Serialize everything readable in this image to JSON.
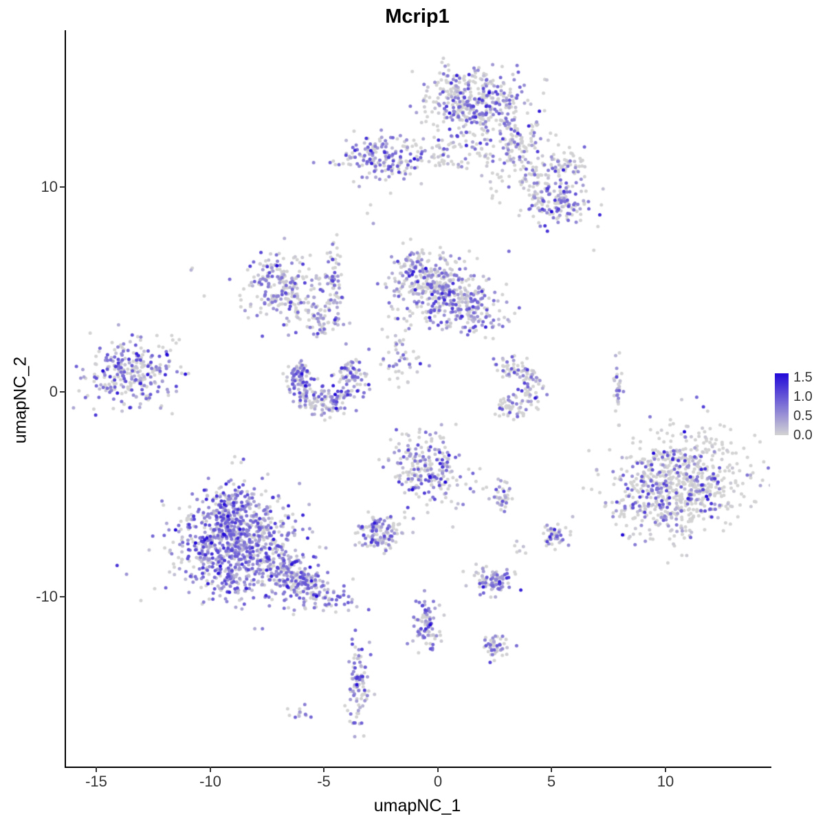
{
  "title": "Mcrip1",
  "axes": {
    "x": {
      "label": "umapNC_1",
      "tick_labels": [
        "-15",
        "-10",
        "-5",
        "0",
        "5",
        "10"
      ],
      "tick_values": [
        -15,
        -10,
        -5,
        0,
        5,
        10
      ]
    },
    "y": {
      "label": "umapNC_2",
      "tick_labels": [
        "10",
        "0",
        "-10"
      ],
      "tick_values": [
        10,
        0,
        -10
      ]
    }
  },
  "legend": {
    "labels": [
      "1.5",
      "1.0",
      "0.5",
      "0.0"
    ],
    "min": 0.0,
    "max": 1.5
  },
  "chart_data": {
    "type": "scatter",
    "title": "Mcrip1",
    "xlabel": "umapNC_1",
    "ylabel": "umapNC_2",
    "xlim": [
      -16.36,
      14.59
    ],
    "ylim": [
      -18.29,
      17.62
    ],
    "grid": false,
    "legend_position": "right",
    "point_radius_px": 2.5,
    "color_scale": {
      "low": "#d3d3d3",
      "high": "#2209d8",
      "domain": [
        0,
        1.5
      ]
    },
    "clusters": [
      {
        "name": "top-main",
        "type": "gauss",
        "cx": 1.7,
        "cy": 14.1,
        "sx": 1.15,
        "sy": 0.85,
        "n": 330,
        "frac": 0.45,
        "mean": 0.6
      },
      {
        "name": "top-main-edge",
        "type": "gauss",
        "cx": 0.9,
        "cy": 14.6,
        "sx": 0.5,
        "sy": 0.6,
        "n": 60,
        "frac": 0.4,
        "mean": 0.6
      },
      {
        "name": "top-tail",
        "type": "gauss",
        "cx": 3.6,
        "cy": 12.3,
        "sx": 0.8,
        "sy": 0.6,
        "n": 90,
        "frac": 0.35,
        "mean": 0.55,
        "rot": -30
      },
      {
        "name": "top-band",
        "type": "gauss",
        "cx": 1.2,
        "cy": 11.6,
        "sx": 1.3,
        "sy": 0.45,
        "n": 90,
        "frac": 0.3,
        "mean": 0.5
      },
      {
        "name": "upper-left",
        "type": "gauss",
        "cx": -2.5,
        "cy": 11.4,
        "sx": 0.95,
        "sy": 0.55,
        "n": 170,
        "frac": 0.55,
        "mean": 0.6
      },
      {
        "name": "upper-right-blob",
        "type": "gauss",
        "cx": 5.2,
        "cy": 9.3,
        "sx": 0.75,
        "sy": 0.7,
        "n": 150,
        "frac": 0.5,
        "mean": 0.65
      },
      {
        "name": "upper-right-band",
        "type": "gauss",
        "cx": 4.0,
        "cy": 10.6,
        "sx": 0.9,
        "sy": 0.5,
        "n": 70,
        "frac": 0.35,
        "mean": 0.5,
        "rot": 25
      },
      {
        "name": "band-right",
        "type": "gauss",
        "cx": 5.9,
        "cy": 11.0,
        "sx": 0.5,
        "sy": 0.4,
        "n": 40,
        "frac": 0.3,
        "mean": 0.5
      },
      {
        "name": "mid-left",
        "type": "gauss",
        "cx": -6.9,
        "cy": 5.2,
        "sx": 0.85,
        "sy": 0.75,
        "n": 210,
        "frac": 0.5,
        "mean": 0.55
      },
      {
        "name": "mid-left-tail",
        "type": "gauss",
        "cx": -5.6,
        "cy": 3.7,
        "sx": 0.7,
        "sy": 0.45,
        "n": 80,
        "frac": 0.45,
        "mean": 0.5,
        "rot": -35
      },
      {
        "name": "mid-streak",
        "type": "gauss",
        "cx": -4.55,
        "cy": 5.6,
        "sx": 0.18,
        "sy": 1.1,
        "n": 65,
        "frac": 0.5,
        "mean": 0.55
      },
      {
        "name": "central",
        "type": "gauss",
        "cx": -0.1,
        "cy": 4.9,
        "sx": 1.0,
        "sy": 0.85,
        "n": 330,
        "frac": 0.55,
        "mean": 0.6
      },
      {
        "name": "central-right",
        "type": "gauss",
        "cx": 1.8,
        "cy": 4.0,
        "sx": 0.8,
        "sy": 0.55,
        "n": 130,
        "frac": 0.5,
        "mean": 0.6
      },
      {
        "name": "central-top",
        "type": "gauss",
        "cx": -1.0,
        "cy": 6.2,
        "sx": 0.5,
        "sy": 0.5,
        "n": 60,
        "frac": 0.5,
        "mean": 0.6
      },
      {
        "name": "central-sub",
        "type": "gauss",
        "cx": -1.7,
        "cy": 1.8,
        "sx": 0.45,
        "sy": 0.8,
        "n": 50,
        "frac": 0.4,
        "mean": 0.5
      },
      {
        "name": "left-hook",
        "type": "arc",
        "cx": -4.9,
        "cy": 0.6,
        "r": 1.25,
        "jr": 0.3,
        "a0": 140,
        "a1": 400,
        "n": 270,
        "frac": 0.6,
        "mean": 0.6
      },
      {
        "name": "far-left",
        "type": "gauss",
        "cx": -13.4,
        "cy": 0.9,
        "sx": 0.95,
        "sy": 0.85,
        "n": 270,
        "frac": 0.6,
        "mean": 0.6
      },
      {
        "name": "right-hook",
        "type": "arc",
        "cx": 3.1,
        "cy": 0.2,
        "r": 1.1,
        "jr": 0.3,
        "a0": -120,
        "a1": 120,
        "n": 140,
        "frac": 0.4,
        "mean": 0.55
      },
      {
        "name": "thin-streak",
        "type": "gauss",
        "cx": 7.9,
        "cy": 0.3,
        "sx": 0.12,
        "sy": 0.85,
        "n": 30,
        "frac": 0.3,
        "mean": 0.5
      },
      {
        "name": "right-large-core",
        "type": "gauss",
        "cx": 9.6,
        "cy": -5.0,
        "sx": 1.1,
        "sy": 1.1,
        "n": 280,
        "frac": 0.4,
        "mean": 0.6
      },
      {
        "name": "right-large",
        "type": "gauss",
        "cx": 11.1,
        "cy": -4.3,
        "sx": 1.3,
        "sy": 1.2,
        "n": 470,
        "frac": 0.18,
        "mean": 0.7
      },
      {
        "name": "center-low",
        "type": "gauss",
        "cx": -0.4,
        "cy": -3.7,
        "sx": 0.85,
        "sy": 0.9,
        "n": 230,
        "frac": 0.5,
        "mean": 0.6
      },
      {
        "name": "center-low-pair",
        "type": "gauss",
        "cx": 2.8,
        "cy": -5.0,
        "sx": 0.3,
        "sy": 0.4,
        "n": 40,
        "frac": 0.45,
        "mean": 0.5
      },
      {
        "name": "dense-small",
        "type": "gauss",
        "cx": -2.5,
        "cy": -6.9,
        "sx": 0.5,
        "sy": 0.4,
        "n": 120,
        "frac": 0.55,
        "mean": 0.6
      },
      {
        "name": "small-right-dot",
        "type": "gauss",
        "cx": 5.2,
        "cy": -7.0,
        "sx": 0.3,
        "sy": 0.28,
        "n": 45,
        "frac": 0.45,
        "mean": 0.6
      },
      {
        "name": "lower-left-main",
        "type": "gauss",
        "cx": -8.8,
        "cy": -7.7,
        "sx": 1.35,
        "sy": 1.25,
        "n": 850,
        "frac": 0.75,
        "mean": 0.6
      },
      {
        "name": "lower-left-top",
        "type": "gauss",
        "cx": -8.9,
        "cy": -5.6,
        "sx": 0.7,
        "sy": 0.6,
        "n": 140,
        "frac": 0.7,
        "mean": 0.6
      },
      {
        "name": "lower-left-tail",
        "type": "gauss",
        "cx": -5.9,
        "cy": -9.4,
        "sx": 1.0,
        "sy": 0.5,
        "n": 220,
        "frac": 0.7,
        "mean": 0.6,
        "rot": -28
      },
      {
        "name": "small-low",
        "type": "gauss",
        "cx": 2.4,
        "cy": -9.2,
        "sx": 0.45,
        "sy": 0.35,
        "n": 90,
        "frac": 0.65,
        "mean": 0.55
      },
      {
        "name": "vert-low",
        "type": "gauss",
        "cx": -0.5,
        "cy": -11.2,
        "sx": 0.3,
        "sy": 0.75,
        "n": 85,
        "frac": 0.6,
        "mean": 0.6
      },
      {
        "name": "tiny-low",
        "type": "gauss",
        "cx": 2.5,
        "cy": -12.4,
        "sx": 0.3,
        "sy": 0.3,
        "n": 45,
        "frac": 0.65,
        "mean": 0.6
      },
      {
        "name": "bottom-streak",
        "type": "gauss",
        "cx": -3.5,
        "cy": -14.3,
        "sx": 0.22,
        "sy": 0.95,
        "n": 95,
        "frac": 0.65,
        "mean": 0.6
      },
      {
        "name": "bottom-dots",
        "type": "gauss",
        "cx": -6.1,
        "cy": -15.7,
        "sx": 0.3,
        "sy": 0.18,
        "n": 12,
        "frac": 0.3,
        "mean": 0.5
      },
      {
        "name": "single-a",
        "type": "gauss",
        "cx": -2.85,
        "cy": 8.8,
        "sx": 0.1,
        "sy": 0.25,
        "n": 3,
        "frac": 0.6,
        "mean": 0.8
      },
      {
        "name": "single-b",
        "type": "gauss",
        "cx": -10.7,
        "cy": 6.1,
        "sx": 0.15,
        "sy": 0.1,
        "n": 2,
        "frac": 0.5,
        "mean": 0.4
      },
      {
        "name": "single-c",
        "type": "gauss",
        "cx": 6.8,
        "cy": 6.9,
        "sx": 0.05,
        "sy": 0.05,
        "n": 1,
        "frac": 0.0,
        "mean": 0.0
      },
      {
        "name": "single-d",
        "type": "gauss",
        "cx": -11.6,
        "cy": 2.6,
        "sx": 0.25,
        "sy": 0.15,
        "n": 4,
        "frac": 0.4,
        "mean": 0.5
      },
      {
        "name": "single-e",
        "type": "gauss",
        "cx": 3.6,
        "cy": -7.6,
        "sx": 0.15,
        "sy": 0.15,
        "n": 6,
        "frac": 0.5,
        "mean": 0.5
      }
    ]
  }
}
